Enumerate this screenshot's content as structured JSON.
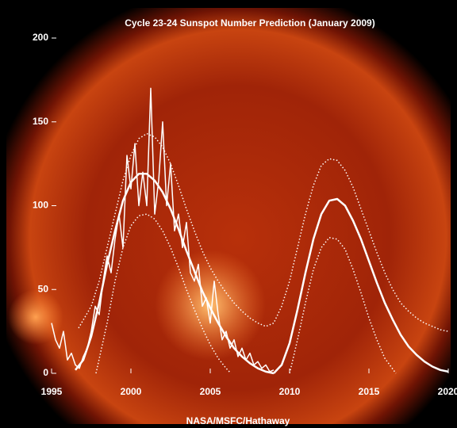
{
  "chart_data": {
    "type": "line",
    "title": "Cycle 23-24 Sunspot Number Prediction (January 2009)",
    "footer": "NASA/MSFC/Hathaway",
    "xlim": [
      1995,
      2020
    ],
    "xticks": [
      1995,
      2000,
      2005,
      2010,
      2015,
      2020
    ],
    "ylim": [
      0,
      200
    ],
    "yticks": [
      0,
      50,
      100,
      150,
      200
    ],
    "series": [
      {
        "color": "#ffffff",
        "width": 1.5,
        "dash": "solid",
        "x": [
          1995,
          1995.25,
          1995.5,
          1995.75,
          1996,
          1996.25,
          1996.5,
          1996.75,
          1997,
          1997.25,
          1997.5,
          1997.75,
          1998,
          1998.25,
          1998.5,
          1998.75,
          1999,
          1999.25,
          1999.5,
          1999.75,
          2000,
          2000.25,
          2000.5,
          2000.75,
          2001,
          2001.25,
          2001.5,
          2001.75,
          2002,
          2002.25,
          2002.5,
          2002.75,
          2003,
          2003.25,
          2003.5,
          2003.75,
          2004,
          2004.25,
          2004.5,
          2004.75,
          2005,
          2005.25,
          2005.5,
          2005.75,
          2006,
          2006.25,
          2006.5,
          2006.75,
          2007,
          2007.25,
          2007.5,
          2007.75,
          2008,
          2008.25,
          2008.5,
          2008.75,
          2009
        ],
        "values": [
          30,
          20,
          15,
          25,
          8,
          12,
          5,
          3,
          10,
          15,
          25,
          40,
          35,
          55,
          70,
          60,
          80,
          95,
          75,
          130,
          110,
          137,
          100,
          120,
          100,
          170,
          95,
          115,
          150,
          100,
          125,
          85,
          95,
          75,
          90,
          60,
          55,
          65,
          40,
          45,
          30,
          55,
          35,
          20,
          25,
          15,
          20,
          10,
          15,
          8,
          12,
          5,
          7,
          3,
          5,
          1,
          2
        ]
      },
      {
        "color": "#ffffff",
        "width": 2.5,
        "dash": "solid",
        "x": [
          1996.5,
          1997,
          1997.5,
          1998,
          1998.5,
          1999,
          1999.5,
          2000,
          2000.5,
          2001,
          2001.5,
          2002,
          2002.5,
          2003,
          2003.5,
          2004,
          2004.5,
          2005,
          2005.5,
          2006,
          2006.5,
          2007,
          2007.5,
          2008,
          2008.5,
          2009
        ],
        "values": [
          2,
          8,
          22,
          42,
          65,
          85,
          103,
          114,
          119,
          119,
          115,
          108,
          98,
          86,
          73,
          61,
          49,
          39,
          30,
          22,
          15,
          10,
          6,
          3,
          1,
          0
        ]
      },
      {
        "color": "#ffffff",
        "width": 2.5,
        "dash": "solid",
        "x": [
          2009,
          2009.5,
          2010,
          2010.5,
          2011,
          2011.5,
          2012,
          2012.5,
          2013,
          2013.5,
          2014,
          2014.5,
          2015,
          2015.5,
          2016,
          2016.5,
          2017,
          2017.5,
          2018,
          2018.5,
          2019,
          2019.5,
          2020
        ],
        "values": [
          0,
          5,
          18,
          38,
          60,
          80,
          95,
          103,
          104,
          100,
          91,
          80,
          67,
          54,
          42,
          32,
          23,
          16,
          11,
          7,
          4,
          2,
          1
        ]
      },
      {
        "color": "#ffffff",
        "width": 1.5,
        "dash": "dotted",
        "x": [
          1996.7,
          1997.5,
          1998,
          1998.5,
          1999,
          1999.5,
          2000,
          2000.5,
          2001,
          2001.5,
          2002,
          2002.5,
          2003,
          2003.5,
          2004,
          2004.5,
          2005,
          2005.5,
          2006,
          2006.5,
          2007,
          2007.5,
          2008,
          2008.5,
          2009,
          2009.5,
          2010,
          2010.5,
          2011,
          2011.5,
          2012,
          2012.5,
          2013,
          2013.5,
          2014,
          2014.5,
          2015,
          2015.5,
          2016,
          2016.5,
          2017,
          2017.5,
          2018,
          2018.5,
          2019,
          2019.5,
          2020
        ],
        "values": [
          27,
          40,
          55,
          75,
          95,
          115,
          130,
          140,
          143,
          141,
          135,
          125,
          112,
          98,
          85,
          73,
          63,
          55,
          48,
          42,
          37,
          33,
          30,
          28,
          30,
          40,
          55,
          75,
          95,
          112,
          124,
          128,
          127,
          121,
          111,
          98,
          85,
          72,
          60,
          50,
          42,
          37,
          33,
          30,
          28,
          26,
          25
        ]
      },
      {
        "color": "#ffffff",
        "width": 1.5,
        "dash": "dotted",
        "x": [
          1997.8,
          1998.5,
          1999,
          1999.5,
          2000,
          2000.5,
          2001,
          2001.5,
          2002,
          2002.5,
          2003,
          2003.5,
          2004,
          2004.5,
          2005,
          2005.5,
          2006,
          2006.3
        ],
        "values": [
          0,
          30,
          55,
          75,
          88,
          94,
          95,
          92,
          85,
          75,
          63,
          50,
          38,
          27,
          17,
          9,
          3,
          0
        ]
      },
      {
        "color": "#ffffff",
        "width": 1.5,
        "dash": "dotted",
        "x": [
          2010,
          2010.5,
          2011,
          2011.5,
          2012,
          2012.5,
          2013,
          2013.5,
          2014,
          2014.5,
          2015,
          2015.5,
          2016,
          2016.7
        ],
        "values": [
          0,
          20,
          42,
          62,
          75,
          81,
          80,
          74,
          62,
          48,
          33,
          20,
          9,
          0
        ]
      }
    ]
  }
}
